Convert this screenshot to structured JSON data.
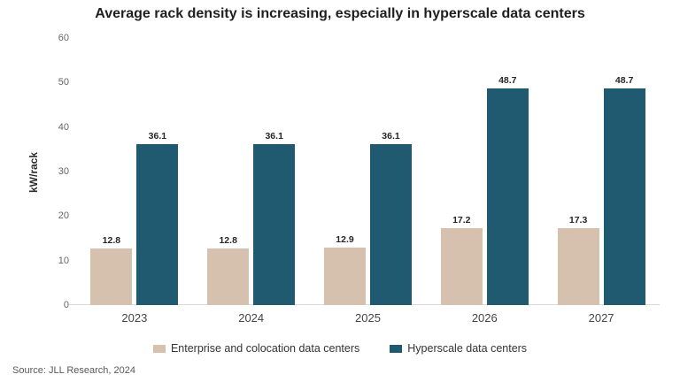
{
  "title": "Average rack density is increasing, especially in hyperscale data centers",
  "source": "Source: JLL Research, 2024",
  "chart_data": {
    "type": "bar",
    "categories": [
      "2023",
      "2024",
      "2025",
      "2026",
      "2027"
    ],
    "series": [
      {
        "name": "Enterprise and colocation data centers",
        "color": "#d6c1ae",
        "values": [
          12.8,
          12.8,
          12.9,
          17.2,
          17.3
        ]
      },
      {
        "name": "Hyperscale data centers",
        "color": "#1f5a70",
        "values": [
          36.1,
          36.1,
          36.1,
          48.7,
          48.7
        ]
      }
    ],
    "title": "Average rack density is increasing, especially in hyperscale data centers",
    "xlabel": "",
    "ylabel": "kW/rack",
    "ylim": [
      0,
      60
    ],
    "ytick_step": 10,
    "grid": false,
    "legend_position": "bottom",
    "value_labels": true
  }
}
